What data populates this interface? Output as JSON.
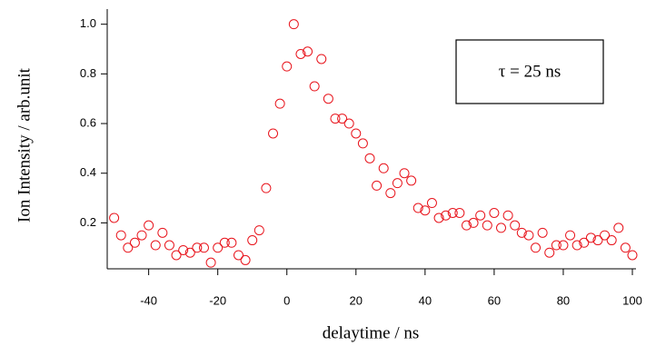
{
  "chart_data": {
    "type": "scatter",
    "x_label": "delaytime / ns",
    "y_label": "Ion Intensity / arb.unit",
    "annotation": "τ = 25 ns",
    "color": "#e8141c",
    "x": [
      -50,
      -48,
      -46,
      -44,
      -42,
      -40,
      -38,
      -36,
      -34,
      -32,
      -30,
      -28,
      -26,
      -24,
      -22,
      -20,
      -18,
      -16,
      -14,
      -12,
      -10,
      -8,
      -6,
      -4,
      -2,
      0,
      2,
      4,
      6,
      8,
      10,
      12,
      14,
      16,
      18,
      20,
      22,
      24,
      26,
      28,
      30,
      32,
      34,
      36,
      38,
      40,
      42,
      44,
      46,
      48,
      50,
      52,
      54,
      56,
      58,
      60,
      62,
      64,
      66,
      68,
      70,
      72,
      74,
      76,
      78,
      80,
      82,
      84,
      86,
      88,
      90,
      92,
      94,
      96,
      98,
      100
    ],
    "values": [
      0.22,
      0.15,
      0.1,
      0.12,
      0.15,
      0.19,
      0.11,
      0.16,
      0.11,
      0.07,
      0.09,
      0.08,
      0.1,
      0.1,
      0.04,
      0.1,
      0.12,
      0.12,
      0.07,
      0.05,
      0.13,
      0.17,
      0.34,
      0.56,
      0.68,
      0.83,
      1.0,
      0.88,
      0.89,
      0.75,
      0.86,
      0.7,
      0.62,
      0.62,
      0.6,
      0.56,
      0.52,
      0.46,
      0.35,
      0.42,
      0.32,
      0.36,
      0.4,
      0.37,
      0.26,
      0.25,
      0.28,
      0.22,
      0.23,
      0.24,
      0.24,
      0.19,
      0.2,
      0.23,
      0.19,
      0.24,
      0.18,
      0.23,
      0.19,
      0.16,
      0.15,
      0.1,
      0.16,
      0.08,
      0.11,
      0.11,
      0.15,
      0.11,
      0.12,
      0.14,
      0.13,
      0.15,
      0.13,
      0.18,
      0.1,
      0.07
    ],
    "xlim": [
      -52,
      100
    ],
    "ylim": [
      0.015,
      1.05
    ],
    "xticks": [
      -40,
      -20,
      0,
      20,
      40,
      60,
      80,
      100
    ],
    "yticks": [
      0.2,
      0.4,
      0.6,
      0.8,
      {
        "value": 1,
        "label": "1.0"
      }
    ]
  }
}
